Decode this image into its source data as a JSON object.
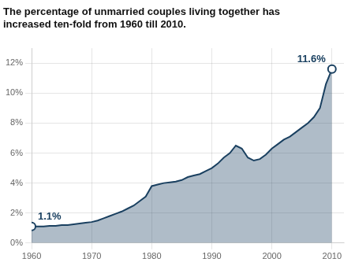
{
  "chart_data": {
    "type": "area",
    "title": [
      "The percentage of unmarried couples living together has",
      "increased ten-fold from 1960 till 2010."
    ],
    "x": [
      1960,
      1961,
      1962,
      1963,
      1964,
      1965,
      1966,
      1967,
      1968,
      1969,
      1970,
      1971,
      1972,
      1973,
      1974,
      1975,
      1976,
      1977,
      1978,
      1979,
      1980,
      1981,
      1982,
      1983,
      1984,
      1985,
      1986,
      1987,
      1988,
      1989,
      1990,
      1991,
      1992,
      1993,
      1994,
      1995,
      1996,
      1997,
      1998,
      1999,
      2000,
      2001,
      2002,
      2003,
      2004,
      2005,
      2006,
      2007,
      2008,
      2009,
      2010
    ],
    "values": [
      1.1,
      1.1,
      1.1,
      1.15,
      1.15,
      1.2,
      1.2,
      1.25,
      1.3,
      1.35,
      1.4,
      1.5,
      1.65,
      1.8,
      1.95,
      2.1,
      2.3,
      2.5,
      2.8,
      3.1,
      3.8,
      3.9,
      4.0,
      4.05,
      4.1,
      4.2,
      4.4,
      4.5,
      4.6,
      4.8,
      5.0,
      5.3,
      5.7,
      6.0,
      6.5,
      6.3,
      5.7,
      5.5,
      5.6,
      5.9,
      6.3,
      6.6,
      6.9,
      7.1,
      7.4,
      7.7,
      8.0,
      8.4,
      9.0,
      10.6,
      11.6
    ],
    "color": "#1a4060",
    "xlim": [
      1960,
      2012
    ],
    "xticks": [
      1960,
      1970,
      1980,
      1990,
      2000,
      2010
    ],
    "ylim": [
      0,
      13
    ],
    "yticks": [
      {
        "value": 0,
        "label": "0%"
      },
      {
        "value": 2,
        "label": "2%"
      },
      {
        "value": 4,
        "label": "4%"
      },
      {
        "value": 6,
        "label": "6%"
      },
      {
        "value": 8,
        "label": "8%"
      },
      {
        "value": 10,
        "label": "10%"
      },
      {
        "value": 12,
        "label": "12%"
      }
    ],
    "annotations": [
      {
        "x": 1960,
        "y": 1.1,
        "text": "1.1%"
      },
      {
        "x": 2010,
        "y": 11.6,
        "text": "11.6%"
      }
    ],
    "grid": true
  }
}
